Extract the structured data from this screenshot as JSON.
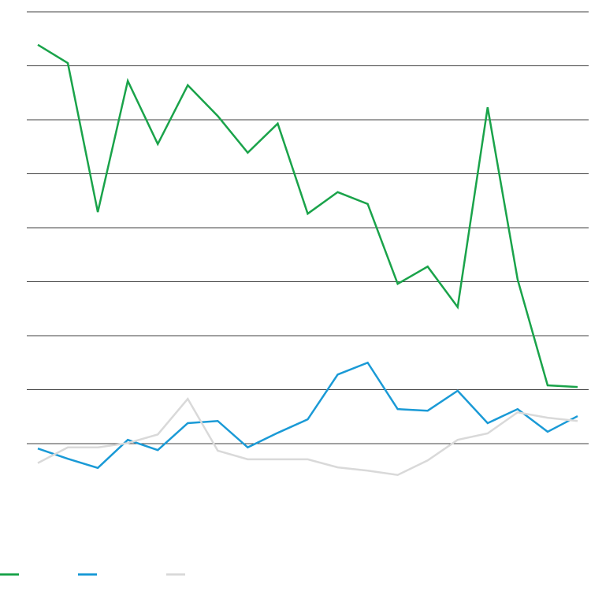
{
  "chart_data": {
    "type": "line",
    "categories": [
      null,
      null,
      null,
      null,
      null,
      null,
      null,
      null,
      null,
      null,
      null,
      null,
      null,
      null,
      null,
      null,
      null,
      null,
      null
    ],
    "series": [
      {
        "color": "#1aa34a",
        "values": [
          7.39,
          7.05,
          4.29,
          6.72,
          5.55,
          6.64,
          6.07,
          5.39,
          5.93,
          4.26,
          4.66,
          4.44,
          2.96,
          3.28,
          2.53,
          6.23,
          3.04,
          1.08,
          1.05
        ]
      },
      {
        "color": "#1a9ad6",
        "values": [
          -0.09,
          -0.28,
          -0.45,
          0.07,
          -0.12,
          0.38,
          0.42,
          -0.07,
          0.2,
          0.45,
          1.28,
          1.5,
          0.64,
          0.61,
          0.98,
          0.38,
          0.64,
          0.22,
          0.51
        ]
      },
      {
        "color": "#d9d9d9",
        "values": [
          -0.36,
          -0.07,
          -0.07,
          0.01,
          0.17,
          0.83,
          -0.13,
          -0.29,
          -0.29,
          -0.29,
          -0.44,
          -0.5,
          -0.58,
          -0.31,
          0.07,
          0.19,
          0.58,
          0.48,
          0.42
        ]
      }
    ],
    "ylim": [
      -1,
      8
    ],
    "yticks": [
      0,
      1,
      2,
      3,
      4,
      5,
      6,
      7,
      8
    ],
    "grid": true,
    "legend": "bottom-left"
  }
}
